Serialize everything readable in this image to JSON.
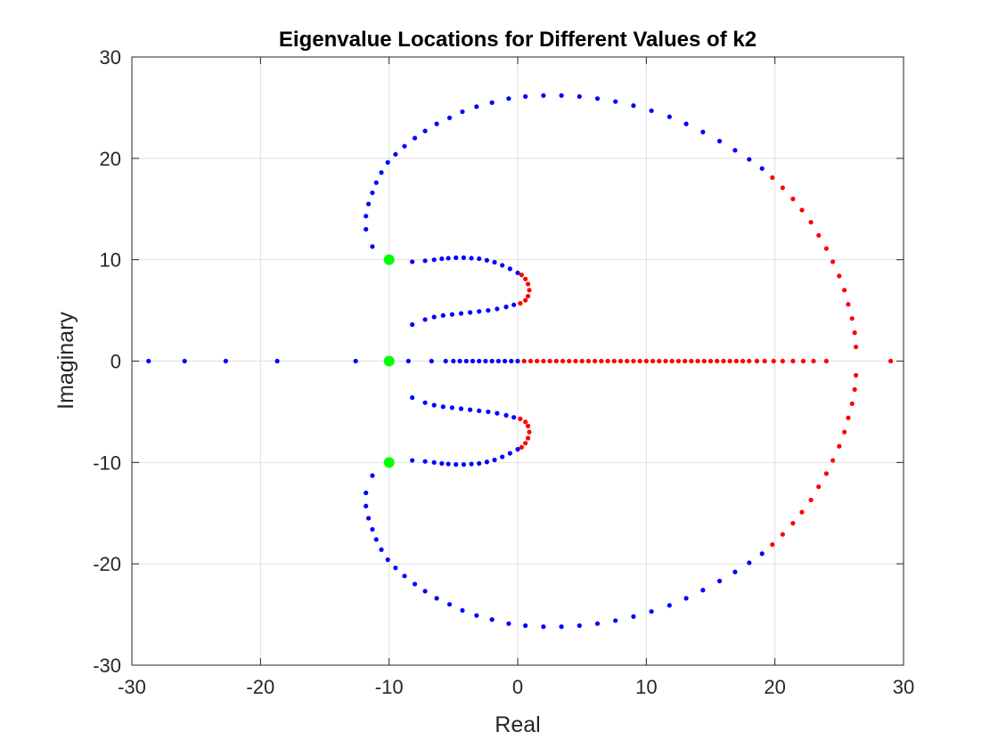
{
  "chart_data": {
    "type": "scatter",
    "title": "Eigenvalue Locations for Different Values of k2",
    "xlabel": "Real",
    "ylabel": "Imaginary",
    "xlim": [
      -30,
      30
    ],
    "ylim": [
      -30,
      30
    ],
    "xticks": [
      -30,
      -20,
      -10,
      0,
      10,
      20,
      30
    ],
    "yticks": [
      -30,
      -20,
      -10,
      0,
      10,
      20,
      30
    ],
    "xtick_labels": [
      "-30",
      "-20",
      "-10",
      "0",
      "10",
      "20",
      "30"
    ],
    "ytick_labels": [
      "-30",
      "-20",
      "-10",
      "0",
      "10",
      "20",
      "30"
    ],
    "grid": true,
    "legend": "none",
    "colors": {
      "stable": "#0000ff",
      "unstable": "#ff0000",
      "open_loop": "#00ff00"
    },
    "series": [
      {
        "color": "#0000ff",
        "points": [
          [
            -28.7,
            0
          ],
          [
            -25.9,
            0
          ],
          [
            -22.7,
            0
          ],
          [
            -18.7,
            0
          ],
          [
            -12.6,
            0
          ],
          [
            -8.5,
            0
          ],
          [
            -6.7,
            0
          ],
          [
            -5.6,
            0
          ],
          [
            -5.0,
            0
          ],
          [
            -4.5,
            0
          ],
          [
            -4.0,
            0
          ],
          [
            -3.5,
            0
          ],
          [
            -3.0,
            0
          ],
          [
            -2.5,
            0
          ],
          [
            -2.0,
            0
          ],
          [
            -1.5,
            0
          ],
          [
            -1.0,
            0
          ],
          [
            -0.5,
            0
          ],
          [
            0.0,
            0
          ],
          [
            -11.3,
            11.3
          ],
          [
            -11.8,
            13.0
          ],
          [
            -11.8,
            14.3
          ],
          [
            -11.6,
            15.5
          ],
          [
            -11.3,
            16.6
          ],
          [
            -11.0,
            17.6
          ],
          [
            -10.6,
            18.6
          ],
          [
            -10.1,
            19.6
          ],
          [
            -9.5,
            20.4
          ],
          [
            -8.8,
            21.2
          ],
          [
            -8.0,
            22.0
          ],
          [
            -7.2,
            22.7
          ],
          [
            -6.3,
            23.4
          ],
          [
            -5.3,
            24.0
          ],
          [
            -4.3,
            24.6
          ],
          [
            -3.2,
            25.1
          ],
          [
            -2.0,
            25.5
          ],
          [
            -0.7,
            25.9
          ],
          [
            0.6,
            26.1
          ],
          [
            2.0,
            26.2
          ],
          [
            3.4,
            26.2
          ],
          [
            4.8,
            26.1
          ],
          [
            6.2,
            25.9
          ],
          [
            7.6,
            25.6
          ],
          [
            9.0,
            25.2
          ],
          [
            10.4,
            24.7
          ],
          [
            11.8,
            24.1
          ],
          [
            13.1,
            23.4
          ],
          [
            14.4,
            22.6
          ],
          [
            15.7,
            21.7
          ],
          [
            16.9,
            20.8
          ],
          [
            18.0,
            19.9
          ],
          [
            19.0,
            19.0
          ],
          [
            -11.3,
            -11.3
          ],
          [
            -11.8,
            -13.0
          ],
          [
            -11.8,
            -14.3
          ],
          [
            -11.6,
            -15.5
          ],
          [
            -11.3,
            -16.6
          ],
          [
            -11.0,
            -17.6
          ],
          [
            -10.6,
            -18.6
          ],
          [
            -10.1,
            -19.6
          ],
          [
            -9.5,
            -20.4
          ],
          [
            -8.8,
            -21.2
          ],
          [
            -8.0,
            -22.0
          ],
          [
            -7.2,
            -22.7
          ],
          [
            -6.3,
            -23.4
          ],
          [
            -5.3,
            -24.0
          ],
          [
            -4.3,
            -24.6
          ],
          [
            -3.2,
            -25.1
          ],
          [
            -2.0,
            -25.5
          ],
          [
            -0.7,
            -25.9
          ],
          [
            0.6,
            -26.1
          ],
          [
            2.0,
            -26.2
          ],
          [
            3.4,
            -26.2
          ],
          [
            4.8,
            -26.1
          ],
          [
            6.2,
            -25.9
          ],
          [
            7.6,
            -25.6
          ],
          [
            9.0,
            -25.2
          ],
          [
            10.4,
            -24.7
          ],
          [
            11.8,
            -24.1
          ],
          [
            13.1,
            -23.4
          ],
          [
            14.4,
            -22.6
          ],
          [
            15.7,
            -21.7
          ],
          [
            16.9,
            -20.8
          ],
          [
            18.0,
            -19.9
          ],
          [
            19.0,
            -19.0
          ],
          [
            -8.2,
            9.8
          ],
          [
            -7.2,
            9.9
          ],
          [
            -6.5,
            10.0
          ],
          [
            -5.9,
            10.1
          ],
          [
            -5.4,
            10.15
          ],
          [
            -4.8,
            10.2
          ],
          [
            -4.2,
            10.2
          ],
          [
            -3.6,
            10.15
          ],
          [
            -3.0,
            10.1
          ],
          [
            -2.4,
            9.95
          ],
          [
            -1.8,
            9.75
          ],
          [
            -1.2,
            9.45
          ],
          [
            -0.6,
            9.1
          ],
          [
            0.0,
            8.7
          ],
          [
            -8.2,
            3.6
          ],
          [
            -7.2,
            4.1
          ],
          [
            -6.5,
            4.35
          ],
          [
            -5.8,
            4.5
          ],
          [
            -5.1,
            4.6
          ],
          [
            -4.4,
            4.7
          ],
          [
            -3.7,
            4.8
          ],
          [
            -3.0,
            4.9
          ],
          [
            -2.3,
            5.0
          ],
          [
            -1.6,
            5.15
          ],
          [
            -0.9,
            5.35
          ],
          [
            -0.3,
            5.55
          ],
          [
            -8.2,
            -9.8
          ],
          [
            -7.2,
            -9.9
          ],
          [
            -6.5,
            -10.0
          ],
          [
            -5.9,
            -10.1
          ],
          [
            -5.4,
            -10.15
          ],
          [
            -4.8,
            -10.2
          ],
          [
            -4.2,
            -10.2
          ],
          [
            -3.6,
            -10.15
          ],
          [
            -3.0,
            -10.1
          ],
          [
            -2.4,
            -9.95
          ],
          [
            -1.8,
            -9.75
          ],
          [
            -1.2,
            -9.45
          ],
          [
            -0.6,
            -9.1
          ],
          [
            0.0,
            -8.7
          ],
          [
            -8.2,
            -3.6
          ],
          [
            -7.2,
            -4.1
          ],
          [
            -6.5,
            -4.35
          ],
          [
            -5.8,
            -4.5
          ],
          [
            -5.1,
            -4.6
          ],
          [
            -4.4,
            -4.7
          ],
          [
            -3.7,
            -4.8
          ],
          [
            -3.0,
            -4.9
          ],
          [
            -2.3,
            -5.0
          ],
          [
            -1.6,
            -5.15
          ],
          [
            -0.9,
            -5.35
          ],
          [
            -0.3,
            -5.55
          ]
        ]
      },
      {
        "color": "#ff0000",
        "points": [
          [
            0.5,
            0
          ],
          [
            1.0,
            0
          ],
          [
            1.5,
            0
          ],
          [
            2.0,
            0
          ],
          [
            2.5,
            0
          ],
          [
            3.0,
            0
          ],
          [
            3.5,
            0
          ],
          [
            4.0,
            0
          ],
          [
            4.5,
            0
          ],
          [
            5.0,
            0
          ],
          [
            5.5,
            0
          ],
          [
            6.0,
            0
          ],
          [
            6.5,
            0
          ],
          [
            7.0,
            0
          ],
          [
            7.5,
            0
          ],
          [
            8.0,
            0
          ],
          [
            8.5,
            0
          ],
          [
            9.0,
            0
          ],
          [
            9.5,
            0
          ],
          [
            10.0,
            0
          ],
          [
            10.5,
            0
          ],
          [
            11.0,
            0
          ],
          [
            11.5,
            0
          ],
          [
            12.0,
            0
          ],
          [
            12.5,
            0
          ],
          [
            13.0,
            0
          ],
          [
            13.5,
            0
          ],
          [
            14.0,
            0
          ],
          [
            14.5,
            0
          ],
          [
            15.0,
            0
          ],
          [
            15.5,
            0
          ],
          [
            16.0,
            0
          ],
          [
            16.5,
            0
          ],
          [
            17.0,
            0
          ],
          [
            17.5,
            0
          ],
          [
            18.0,
            0
          ],
          [
            18.6,
            0
          ],
          [
            19.2,
            0
          ],
          [
            19.9,
            0
          ],
          [
            20.6,
            0
          ],
          [
            21.4,
            0
          ],
          [
            22.2,
            0
          ],
          [
            23.0,
            0
          ],
          [
            24.0,
            0
          ],
          [
            29.0,
            0
          ],
          [
            19.8,
            18.1
          ],
          [
            20.6,
            17.1
          ],
          [
            21.4,
            16.0
          ],
          [
            22.1,
            14.9
          ],
          [
            22.8,
            13.7
          ],
          [
            23.4,
            12.4
          ],
          [
            24.0,
            11.1
          ],
          [
            24.5,
            9.8
          ],
          [
            25.0,
            8.4
          ],
          [
            25.4,
            7.0
          ],
          [
            25.7,
            5.6
          ],
          [
            26.0,
            4.2
          ],
          [
            26.2,
            2.8
          ],
          [
            26.3,
            1.4
          ],
          [
            19.8,
            -18.1
          ],
          [
            20.6,
            -17.1
          ],
          [
            21.4,
            -16.0
          ],
          [
            22.1,
            -14.9
          ],
          [
            22.8,
            -13.7
          ],
          [
            23.4,
            -12.4
          ],
          [
            24.0,
            -11.1
          ],
          [
            24.5,
            -9.8
          ],
          [
            25.0,
            -8.4
          ],
          [
            25.4,
            -7.0
          ],
          [
            25.7,
            -5.6
          ],
          [
            26.0,
            -4.2
          ],
          [
            26.2,
            -2.8
          ],
          [
            26.3,
            -1.4
          ],
          [
            0.3,
            8.5
          ],
          [
            0.6,
            8.1
          ],
          [
            0.8,
            7.6
          ],
          [
            0.9,
            7.0
          ],
          [
            0.8,
            6.4
          ],
          [
            0.6,
            6.0
          ],
          [
            0.2,
            5.7
          ],
          [
            0.3,
            -8.5
          ],
          [
            0.6,
            -8.1
          ],
          [
            0.8,
            -7.6
          ],
          [
            0.9,
            -7.0
          ],
          [
            0.8,
            -6.4
          ],
          [
            0.6,
            -6.0
          ],
          [
            0.2,
            -5.7
          ]
        ]
      },
      {
        "color": "#00ff00",
        "points": [
          [
            -10,
            10
          ],
          [
            -10,
            0
          ],
          [
            -10,
            -10
          ]
        ]
      }
    ]
  }
}
